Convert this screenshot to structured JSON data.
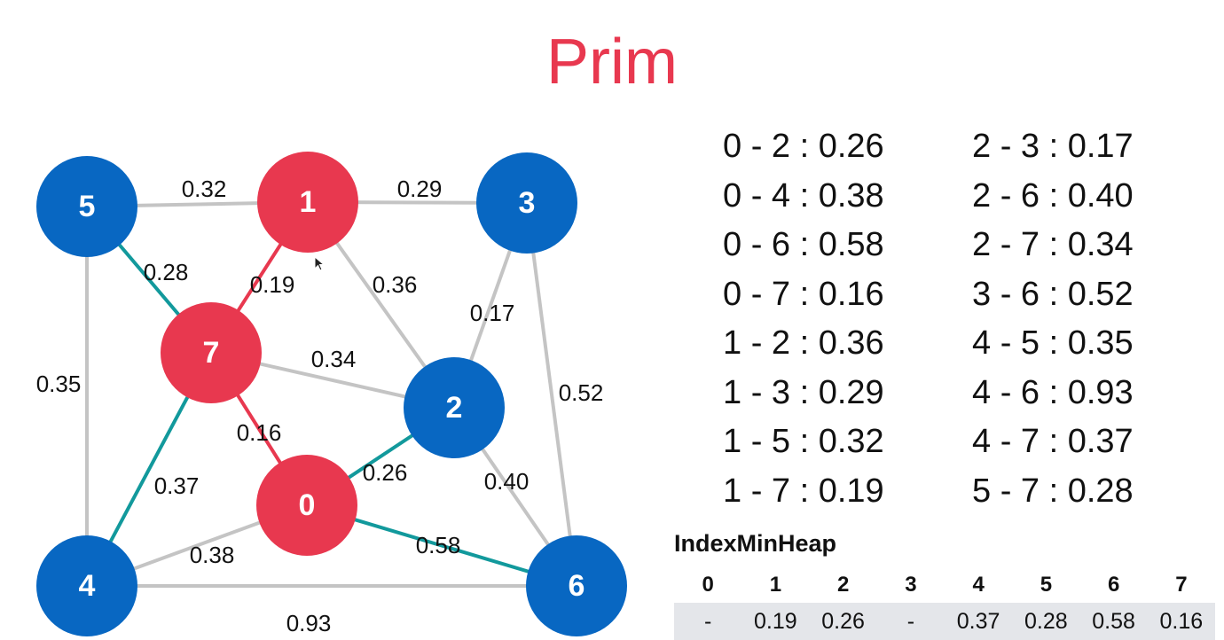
{
  "title": "Prim",
  "colors": {
    "title": "#e8384f",
    "tree_node": "#e8384f",
    "other_node": "#0867c2",
    "mst_edge": "#e8384f",
    "crossing_edge": "#12999c",
    "normal_edge": "#c4c4c4",
    "heap_row_bg": "#e4e6ea"
  },
  "graph": {
    "nodes": [
      {
        "id": "0",
        "label": "0",
        "state": "tree"
      },
      {
        "id": "1",
        "label": "1",
        "state": "tree"
      },
      {
        "id": "2",
        "label": "2",
        "state": "normal"
      },
      {
        "id": "3",
        "label": "3",
        "state": "normal"
      },
      {
        "id": "4",
        "label": "4",
        "state": "normal"
      },
      {
        "id": "5",
        "label": "5",
        "state": "normal"
      },
      {
        "id": "6",
        "label": "6",
        "state": "normal"
      },
      {
        "id": "7",
        "label": "7",
        "state": "tree"
      }
    ],
    "edges": [
      {
        "from": "5",
        "to": "1",
        "weight": "0.32",
        "state": "normal"
      },
      {
        "from": "1",
        "to": "3",
        "weight": "0.29",
        "state": "normal"
      },
      {
        "from": "5",
        "to": "7",
        "weight": "0.28",
        "state": "crossing"
      },
      {
        "from": "7",
        "to": "1",
        "weight": "0.19",
        "state": "mst"
      },
      {
        "from": "1",
        "to": "2",
        "weight": "0.36",
        "state": "normal"
      },
      {
        "from": "2",
        "to": "3",
        "weight": "0.17",
        "state": "normal"
      },
      {
        "from": "5",
        "to": "4",
        "weight": "0.35",
        "state": "normal"
      },
      {
        "from": "7",
        "to": "2",
        "weight": "0.34",
        "state": "normal"
      },
      {
        "from": "3",
        "to": "6",
        "weight": "0.52",
        "state": "normal"
      },
      {
        "from": "7",
        "to": "0",
        "weight": "0.16",
        "state": "mst"
      },
      {
        "from": "0",
        "to": "2",
        "weight": "0.26",
        "state": "crossing"
      },
      {
        "from": "7",
        "to": "4",
        "weight": "0.37",
        "state": "crossing"
      },
      {
        "from": "2",
        "to": "6",
        "weight": "0.40",
        "state": "normal"
      },
      {
        "from": "4",
        "to": "0",
        "weight": "0.38",
        "state": "normal"
      },
      {
        "from": "0",
        "to": "6",
        "weight": "0.58",
        "state": "crossing"
      },
      {
        "from": "4",
        "to": "6",
        "weight": "0.93",
        "state": "normal"
      }
    ]
  },
  "edge_list": {
    "left": [
      "0 - 2 : 0.26",
      "0 - 4 : 0.38",
      "0 - 6 : 0.58",
      "0 - 7 : 0.16",
      "1 - 2 : 0.36",
      "1 - 3 : 0.29",
      "1 - 5 : 0.32",
      "1 - 7 : 0.19"
    ],
    "right": [
      "2 - 3 : 0.17",
      "2 - 6 : 0.40",
      "2 - 7 : 0.34",
      "3 - 6 : 0.52",
      "4 - 5 : 0.35",
      "4 - 6 : 0.93",
      "4 - 7 : 0.37",
      "5 - 7 : 0.28"
    ]
  },
  "heap": {
    "label": "IndexMinHeap",
    "indices": [
      {
        "text": "0",
        "in_tree": true
      },
      {
        "text": "1",
        "in_tree": true
      },
      {
        "text": "2",
        "in_tree": false
      },
      {
        "text": "3",
        "in_tree": false
      },
      {
        "text": "4",
        "in_tree": false
      },
      {
        "text": "5",
        "in_tree": false
      },
      {
        "text": "6",
        "in_tree": false
      },
      {
        "text": "7",
        "in_tree": true
      }
    ],
    "values": [
      {
        "text": "-",
        "in_tree": true
      },
      {
        "text": "0.19",
        "in_tree": true
      },
      {
        "text": "0.26",
        "in_tree": false
      },
      {
        "text": "-",
        "in_tree": false
      },
      {
        "text": "0.37",
        "in_tree": false
      },
      {
        "text": "0.28",
        "in_tree": false
      },
      {
        "text": "0.58",
        "in_tree": false
      },
      {
        "text": "0.16",
        "in_tree": true
      }
    ]
  }
}
